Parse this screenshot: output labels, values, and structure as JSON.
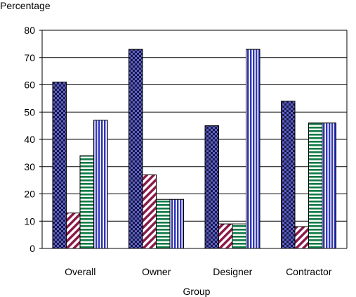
{
  "chart_data": {
    "type": "bar",
    "title": "",
    "ylabel": "Percentage",
    "xlabel": "Group",
    "categories": [
      "Overall",
      "Owner",
      "Designer",
      "Contractor"
    ],
    "ylim": [
      0,
      80
    ],
    "yticks": [
      "0",
      "10",
      "20",
      "30",
      "40",
      "50",
      "60",
      "70",
      "80"
    ],
    "grid": true,
    "legend": "none",
    "series": [
      {
        "values": [
          61,
          73,
          45,
          54
        ],
        "color": "#5b5fd0",
        "pattern": "checker"
      },
      {
        "values": [
          13,
          27,
          9,
          8
        ],
        "color": "#8b1a4a",
        "pattern": "diagonal"
      },
      {
        "values": [
          34,
          18,
          9,
          46
        ],
        "color": "#0f7a45",
        "pattern": "horizontal"
      },
      {
        "values": [
          47,
          18,
          73,
          46
        ],
        "color": "#3036b8",
        "pattern": "vertical"
      }
    ]
  }
}
